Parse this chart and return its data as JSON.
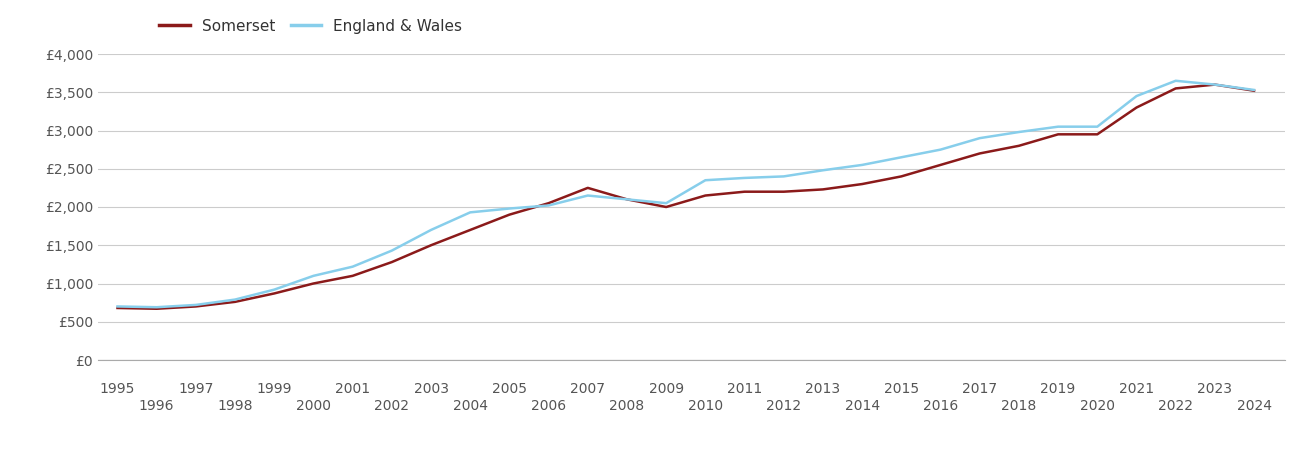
{
  "somerset": {
    "years": [
      1995,
      1996,
      1997,
      1998,
      1999,
      2000,
      2001,
      2002,
      2003,
      2004,
      2005,
      2006,
      2007,
      2008,
      2009,
      2010,
      2011,
      2012,
      2013,
      2014,
      2015,
      2016,
      2017,
      2018,
      2019,
      2020,
      2021,
      2022,
      2023,
      2024
    ],
    "values": [
      680,
      670,
      700,
      760,
      870,
      1000,
      1100,
      1280,
      1500,
      1700,
      1900,
      2050,
      2250,
      2100,
      2000,
      2150,
      2200,
      2200,
      2230,
      2300,
      2400,
      2550,
      2700,
      2800,
      2950,
      2950,
      3300,
      3550,
      3600,
      3520
    ]
  },
  "england_wales": {
    "years": [
      1995,
      1996,
      1997,
      1998,
      1999,
      2000,
      2001,
      2002,
      2003,
      2004,
      2005,
      2006,
      2007,
      2008,
      2009,
      2010,
      2011,
      2012,
      2013,
      2014,
      2015,
      2016,
      2017,
      2018,
      2019,
      2020,
      2021,
      2022,
      2023,
      2024
    ],
    "values": [
      700,
      690,
      720,
      790,
      920,
      1100,
      1220,
      1430,
      1700,
      1930,
      1980,
      2020,
      2150,
      2100,
      2050,
      2350,
      2380,
      2400,
      2480,
      2550,
      2650,
      2750,
      2900,
      2980,
      3050,
      3050,
      3450,
      3650,
      3600,
      3530
    ]
  },
  "somerset_color": "#8B1A1A",
  "england_wales_color": "#87CEEB",
  "somerset_label": "Somerset",
  "england_wales_label": "England & Wales",
  "ylim": [
    0,
    4000
  ],
  "yticks": [
    0,
    500,
    1000,
    1500,
    2000,
    2500,
    3000,
    3500,
    4000
  ],
  "ytick_labels": [
    "£0",
    "£500",
    "£1,000",
    "£1,500",
    "£2,000",
    "£2,500",
    "£3,000",
    "£3,500",
    "£4,000"
  ],
  "xticks_top": [
    1995,
    1997,
    1999,
    2001,
    2003,
    2005,
    2007,
    2009,
    2011,
    2013,
    2015,
    2017,
    2019,
    2021,
    2023
  ],
  "xticks_bottom": [
    1996,
    1998,
    2000,
    2002,
    2004,
    2006,
    2008,
    2010,
    2012,
    2014,
    2016,
    2018,
    2020,
    2022,
    2024
  ],
  "line_width": 1.8,
  "background_color": "#ffffff",
  "grid_color": "#cccccc",
  "legend_fontsize": 11,
  "tick_fontsize": 10,
  "xlim_left": 1994.5,
  "xlim_right": 2024.8
}
